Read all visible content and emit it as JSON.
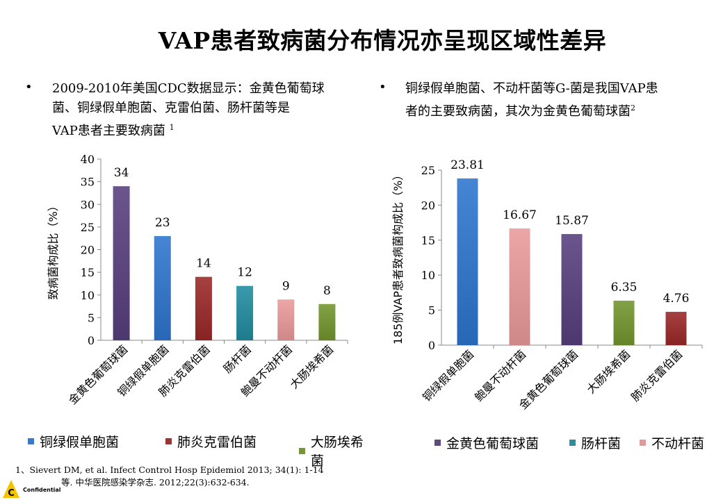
{
  "title": "VAP患者致病菌分布情况亦呈现区域性差异",
  "bullet_left": {
    "symbol": "•",
    "lines": [
      "2009-2010年美国CDC数据显示：金黄色葡萄球",
      "菌、铜绿假单胞菌、克雷伯菌、肠杆菌等是",
      "VAP患者主要致病菌 "
    ],
    "sup": "1"
  },
  "bullet_right": {
    "symbol": "•",
    "lines": [
      "铜绿假单胞菌、不动杆菌等G-菌是我国VAP患",
      "者的主要致病菌，其次为金黄色葡萄球菌"
    ],
    "sup": "2"
  },
  "colors": {
    "铜绿假单胞菌": "#3a78c8",
    "肺炎克雷伯菌": "#9a3535",
    "大肠埃希菌": "#77963a",
    "金黄色葡萄球菌": "#5e4a80",
    "肠杆菌": "#2e8ea0",
    "不动杆菌": "#e09a9a"
  },
  "chart_data": [
    {
      "type": "bar",
      "categories": [
        "金黄色葡萄球菌",
        "铜绿假单胞菌",
        "肺炎克雷伯菌",
        "肠杆菌",
        "鲍曼不动杆菌",
        "大肠埃希菌"
      ],
      "values": [
        34,
        23,
        14,
        12,
        9,
        8
      ],
      "data_labels": [
        "34",
        "23",
        "14",
        "12",
        "9",
        "8"
      ],
      "color_keys": [
        "金黄色葡萄球菌",
        "铜绿假单胞菌",
        "肺炎克雷伯菌",
        "肠杆菌",
        "不动杆菌",
        "大肠埃希菌"
      ],
      "ylabel": "致病菌构成比（%）",
      "ylim": [
        0,
        40
      ],
      "yticks": [
        0,
        5,
        10,
        15,
        20,
        25,
        30,
        35,
        40
      ],
      "grid": false
    },
    {
      "type": "bar",
      "categories": [
        "铜绿假单胞菌",
        "鲍曼不动杆菌",
        "金黄色葡萄球菌",
        "大肠埃希菌",
        "肺炎克雷伯菌"
      ],
      "values": [
        23.81,
        16.67,
        15.87,
        6.35,
        4.76
      ],
      "data_labels": [
        "23.81",
        "16.67",
        "15.87",
        "6.35",
        "4.76"
      ],
      "color_keys": [
        "铜绿假单胞菌",
        "不动杆菌",
        "金黄色葡萄球菌",
        "大肠埃希菌",
        "肺炎克雷伯菌"
      ],
      "ylabel": "185例VAP患者致病菌构成比（%）",
      "ylim": [
        0,
        25
      ],
      "yticks": [
        0,
        5,
        10,
        15,
        20,
        25
      ],
      "grid": false
    }
  ],
  "legend_left": [
    {
      "label": "铜绿假单胞菌",
      "color_key": "铜绿假单胞菌"
    },
    {
      "label": "肺炎克雷伯菌",
      "color_key": "肺炎克雷伯菌"
    },
    {
      "label": "大肠埃希菌",
      "color_key": "大肠埃希菌"
    }
  ],
  "legend_right": [
    {
      "label": "金黄色葡萄球菌",
      "color_key": "金黄色葡萄球菌"
    },
    {
      "label": "肠杆菌",
      "color_key": "肠杆菌"
    },
    {
      "label": "不动杆菌",
      "color_key": "不动杆菌"
    }
  ],
  "references": {
    "line1": "1、Sievert DM, et al. Infect Control Hosp Epidemiol 2013; 34(1): 1-14",
    "line2": "等. 中华医院感染学杂志. 2012;22(3):632-634."
  },
  "footer": {
    "logo_letter": "C",
    "confidential": "Confidential"
  }
}
